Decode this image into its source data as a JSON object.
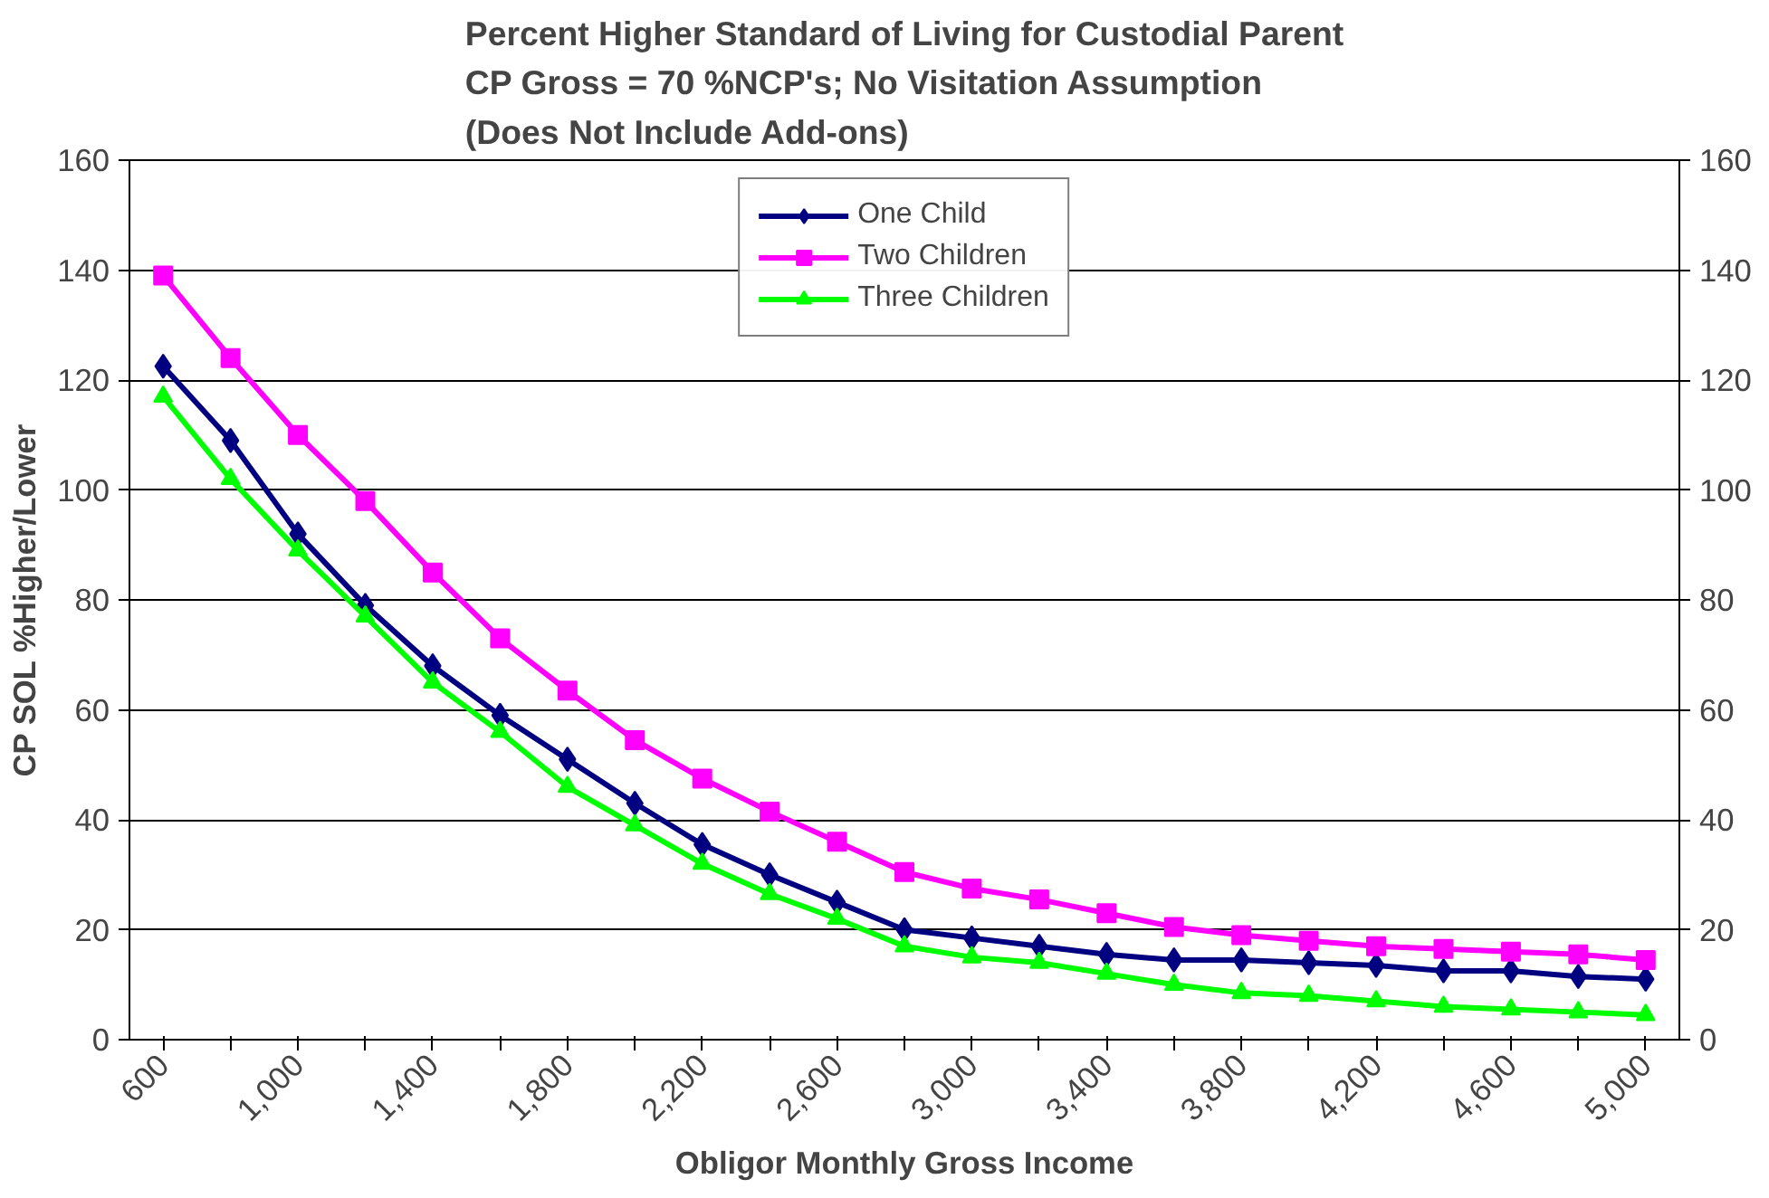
{
  "chart_data": {
    "type": "line",
    "title": "Percent Higher Standard of Living for Custodial Parent\nCP Gross = 70 %NCP's; No Visitation Assumption\n(Does Not Include Add-ons)",
    "xlabel": "Obligor Monthly Gross Income",
    "ylabel": "CP SOL %Higher/Lower",
    "categories": [
      "600",
      null,
      "1,000",
      null,
      "1,400",
      null,
      "1,800",
      null,
      "2,200",
      null,
      "2,600",
      null,
      "3,000",
      null,
      "3,400",
      null,
      "3,800",
      null,
      "4,200",
      null,
      "4,600",
      null,
      "5,000"
    ],
    "series": [
      {
        "name": "One Child",
        "color": "#000080",
        "marker": "diamond",
        "values": [
          122.5,
          109,
          92,
          79,
          68,
          59,
          51,
          43,
          35.5,
          30,
          25,
          20,
          18.5,
          17,
          15.5,
          14.5,
          14.5,
          14,
          13.5,
          12.5,
          12.5,
          11.5,
          11
        ]
      },
      {
        "name": "Two Children",
        "color": "#ff00ff",
        "marker": "square",
        "values": [
          139,
          124,
          110,
          98,
          85,
          73,
          63.5,
          54.5,
          47.5,
          41.5,
          36,
          30.5,
          27.5,
          25.5,
          23,
          20.5,
          19,
          18,
          17,
          16.5,
          16,
          15.5,
          14.5
        ]
      },
      {
        "name": "Three Children",
        "color": "#00ff00",
        "marker": "triangle",
        "values": [
          117,
          102,
          89,
          77,
          65,
          56,
          46,
          39,
          32,
          26.5,
          22,
          17,
          15,
          14,
          12,
          10,
          8.5,
          8,
          7,
          6,
          5.5,
          5,
          4.5
        ]
      }
    ],
    "ylim": [
      0,
      160
    ],
    "yticks": [
      0,
      20,
      40,
      60,
      80,
      100,
      120,
      140,
      160
    ],
    "y2lim": [
      0,
      160
    ],
    "y2ticks": [
      0,
      20,
      40,
      60,
      80,
      100,
      120,
      140,
      160
    ],
    "grid": "y",
    "legend": "top",
    "line_style": "solid"
  }
}
